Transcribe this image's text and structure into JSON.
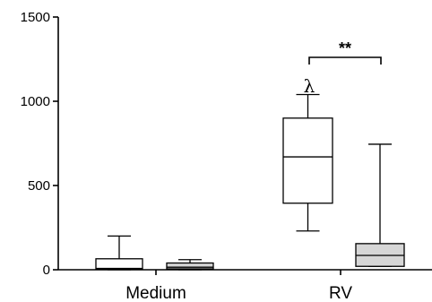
{
  "chart_data": {
    "type": "box",
    "title": "",
    "xlabel": "",
    "ylabel": "",
    "ylim": [
      0,
      1500
    ],
    "yticks": [
      0,
      500,
      1000,
      1500
    ],
    "categories": [
      "Medium",
      "RV"
    ],
    "boxes": [
      {
        "category": "Medium",
        "fill": "#ffffff",
        "min": 0,
        "q1": 5,
        "median": 8,
        "q3": 65,
        "max": 200
      },
      {
        "category": "Medium",
        "fill": "#d6d6d6",
        "min": 0,
        "q1": 5,
        "median": 15,
        "q3": 40,
        "max": 60
      },
      {
        "category": "RV",
        "fill": "#ffffff",
        "min": 230,
        "q1": 395,
        "median": 670,
        "q3": 900,
        "max": 1040
      },
      {
        "category": "RV",
        "fill": "#d6d6d6",
        "min": 20,
        "q1": 20,
        "median": 85,
        "q3": 155,
        "max": 745
      }
    ],
    "annotations": {
      "lambda_symbol": "λ",
      "significance": "**"
    }
  }
}
